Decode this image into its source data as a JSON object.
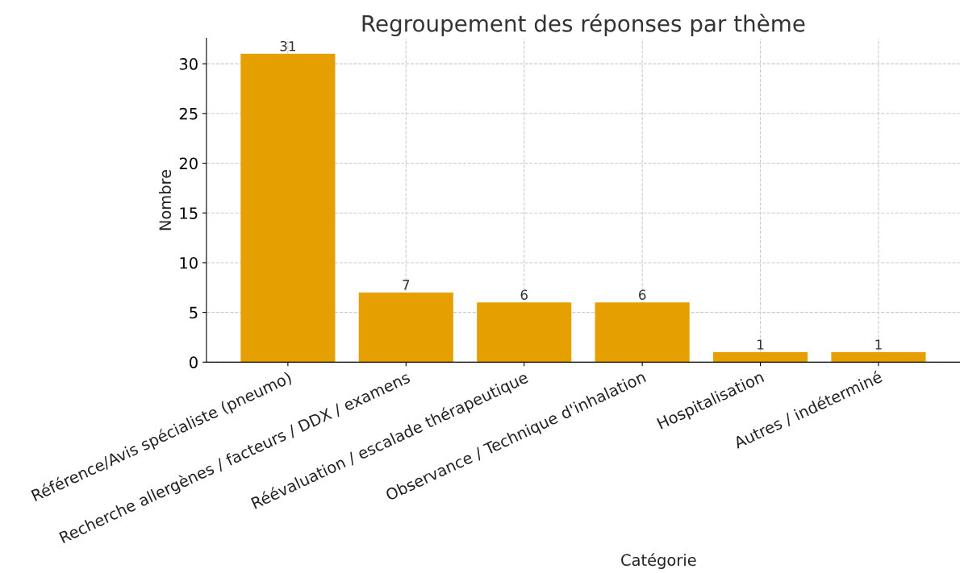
{
  "chart_data": {
    "type": "bar",
    "title": "Regroupement des réponses par thème",
    "xlabel": "Catégorie",
    "ylabel": "Nombre",
    "categories": [
      "Référence/Avis spécialiste (pneumo)",
      "Recherche allergènes / facteurs / DDX / examens",
      "Réévaluation / escalade thérapeutique",
      "Observance / Technique d'inhalation",
      "Hospitalisation",
      "Autres / indéterminé"
    ],
    "values": [
      31,
      7,
      6,
      6,
      1,
      1
    ],
    "color": "#e69f00",
    "ylim": [
      0,
      32.55
    ],
    "yticks": [
      0,
      5,
      10,
      15,
      20,
      25,
      30
    ],
    "grid": true,
    "data_labels": true
  }
}
